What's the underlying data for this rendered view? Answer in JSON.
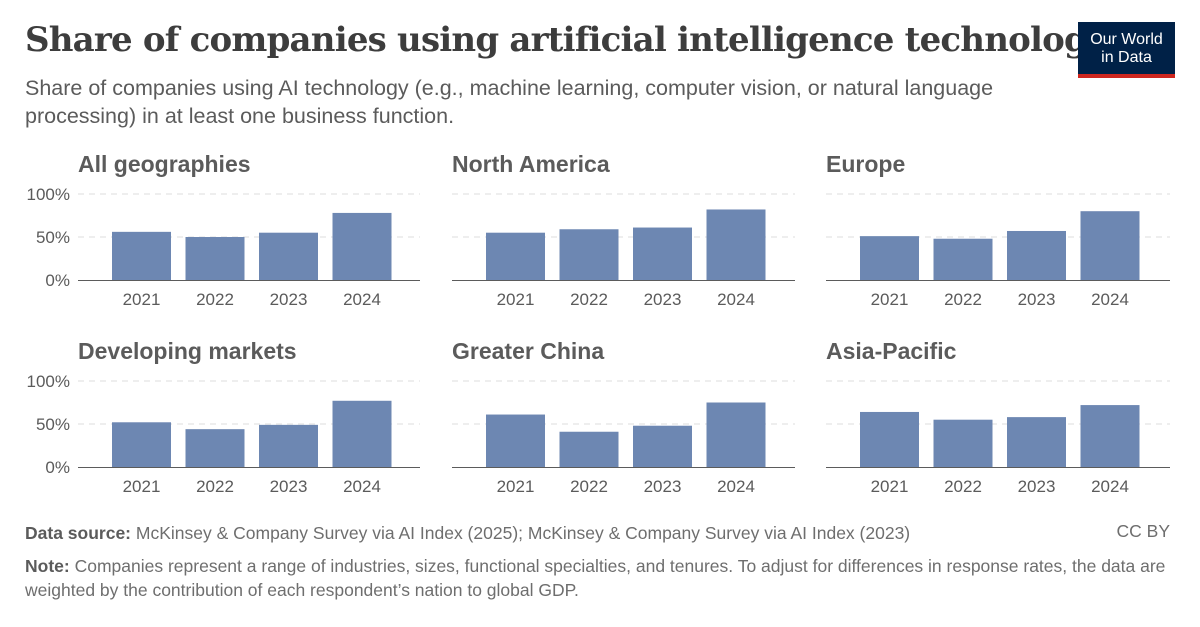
{
  "header": {
    "title": "Share of companies using artificial intelligence technology",
    "subtitle": "Share of companies using AI technology (e.g., machine learning, computer vision, or natural language processing) in at least one business function."
  },
  "logo": {
    "line1": "Our World",
    "line2": "in Data"
  },
  "footer": {
    "source_label": "Data source:",
    "source_text": "McKinsey & Company Survey via AI Index (2025); McKinsey & Company Survey via AI Index (2023)",
    "license": "CC BY",
    "note_label": "Note:",
    "note_text": "Companies represent a range of industries, sizes, functional specialties, and tenures. To adjust for differences in response rates, the data are weighted by the contribution of each respondent’s nation to global GDP."
  },
  "colors": {
    "bar": "#6d87b2",
    "grid": "#dddddd",
    "axis": "#5b5b5b"
  },
  "chart_data": [
    {
      "type": "bar",
      "title": "All geographies",
      "categories": [
        "2021",
        "2022",
        "2023",
        "2024"
      ],
      "values": [
        56,
        50,
        55,
        78
      ],
      "ylim": [
        0,
        100
      ],
      "yticks": [
        "0%",
        "50%",
        "100%"
      ],
      "grid": true
    },
    {
      "type": "bar",
      "title": "North America",
      "categories": [
        "2021",
        "2022",
        "2023",
        "2024"
      ],
      "values": [
        55,
        59,
        61,
        82
      ],
      "ylim": [
        0,
        100
      ],
      "yticks": [
        "0%",
        "50%",
        "100%"
      ],
      "grid": true
    },
    {
      "type": "bar",
      "title": "Europe",
      "categories": [
        "2021",
        "2022",
        "2023",
        "2024"
      ],
      "values": [
        51,
        48,
        57,
        80
      ],
      "ylim": [
        0,
        100
      ],
      "yticks": [
        "0%",
        "50%",
        "100%"
      ],
      "grid": true
    },
    {
      "type": "bar",
      "title": "Developing markets",
      "categories": [
        "2021",
        "2022",
        "2023",
        "2024"
      ],
      "values": [
        52,
        44,
        49,
        77
      ],
      "ylim": [
        0,
        100
      ],
      "yticks": [
        "0%",
        "50%",
        "100%"
      ],
      "grid": true
    },
    {
      "type": "bar",
      "title": "Greater China",
      "categories": [
        "2021",
        "2022",
        "2023",
        "2024"
      ],
      "values": [
        61,
        41,
        48,
        75
      ],
      "ylim": [
        0,
        100
      ],
      "yticks": [
        "0%",
        "50%",
        "100%"
      ],
      "grid": true
    },
    {
      "type": "bar",
      "title": "Asia-Pacific",
      "categories": [
        "2021",
        "2022",
        "2023",
        "2024"
      ],
      "values": [
        64,
        55,
        58,
        72
      ],
      "ylim": [
        0,
        100
      ],
      "yticks": [
        "0%",
        "50%",
        "100%"
      ],
      "grid": true
    }
  ]
}
